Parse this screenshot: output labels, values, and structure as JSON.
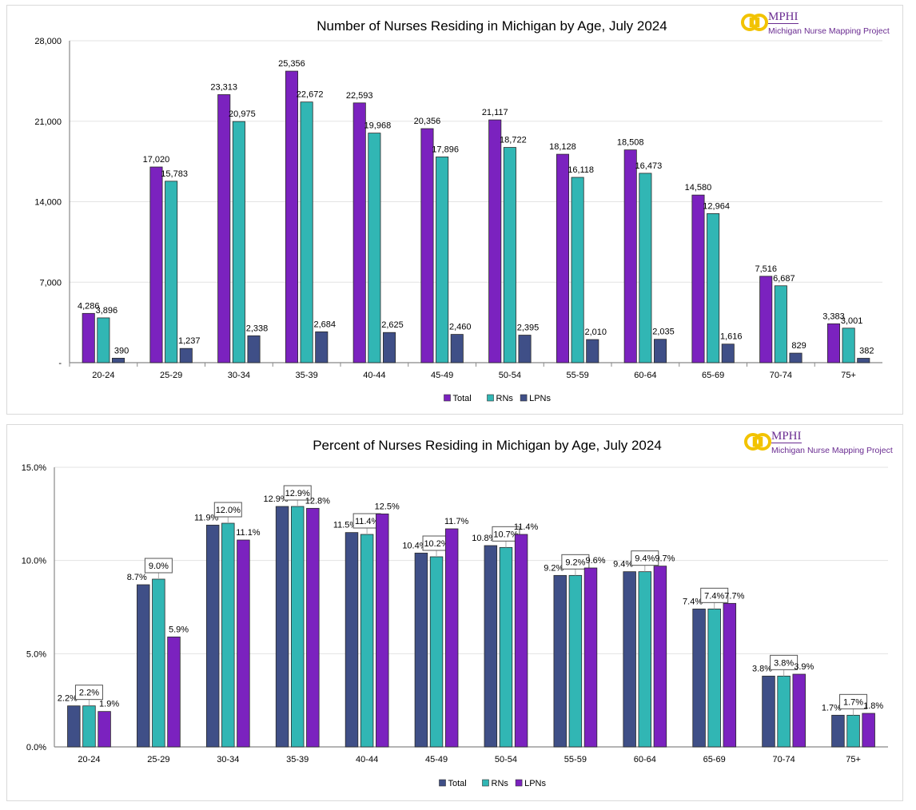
{
  "logo": {
    "name": "MPHI",
    "subtitle": "Michigan Nurse Mapping Project"
  },
  "chart_data": [
    {
      "type": "bar",
      "title": "Number of Nurses Residing in Michigan by Age, July 2024",
      "xlabel": "",
      "ylabel": "",
      "ylim": [
        0,
        28000
      ],
      "yticks": [
        0,
        7000,
        14000,
        21000,
        28000
      ],
      "ytick_labels": [
        "-",
        "7,000",
        "14,000",
        "21,000",
        "28,000"
      ],
      "grid": true,
      "legend_position": "bottom",
      "categories": [
        "20-24",
        "25-29",
        "30-34",
        "35-39",
        "40-44",
        "45-49",
        "50-54",
        "55-59",
        "60-64",
        "65-69",
        "70-74",
        "75+"
      ],
      "series": [
        {
          "name": "Total",
          "color": "#7b22bf",
          "values": [
            4286,
            17020,
            23313,
            25356,
            22593,
            20356,
            21117,
            18128,
            18508,
            14580,
            7516,
            3383
          ],
          "labels": [
            "4,286",
            "17,020",
            "23,313",
            "25,356",
            "22,593",
            "20,356",
            "21,117",
            "18,128",
            "18,508",
            "14,580",
            "7,516",
            "3,383"
          ]
        },
        {
          "name": "RNs",
          "color": "#31b6b4",
          "values": [
            3896,
            15783,
            20975,
            22672,
            19968,
            17896,
            18722,
            16118,
            16473,
            12964,
            6687,
            3001
          ],
          "labels": [
            "3,896",
            "15,783",
            "20,975",
            "22,672",
            "19,968",
            "17,896",
            "18,722",
            "16,118",
            "16,473",
            "12,964",
            "6,687",
            "3,001"
          ]
        },
        {
          "name": "LPNs",
          "color": "#3f4f87",
          "values": [
            390,
            1237,
            2338,
            2684,
            2625,
            2460,
            2395,
            2010,
            2035,
            1616,
            829,
            382
          ],
          "labels": [
            "390",
            "1,237",
            "2,338",
            "2,684",
            "2,625",
            "2,460",
            "2,395",
            "2,010",
            "2,035",
            "1,616",
            "829",
            "382"
          ]
        }
      ]
    },
    {
      "type": "bar",
      "title": "Percent of Nurses Residing in Michigan by Age, July 2024",
      "xlabel": "",
      "ylabel": "",
      "ylim": [
        0,
        15
      ],
      "yticks": [
        0,
        5,
        10,
        15
      ],
      "ytick_labels": [
        "0.0%",
        "5.0%",
        "10.0%",
        "15.0%"
      ],
      "grid": true,
      "legend_position": "bottom",
      "categories": [
        "20-24",
        "25-29",
        "30-34",
        "35-39",
        "40-44",
        "45-49",
        "50-54",
        "55-59",
        "60-64",
        "65-69",
        "70-74",
        "75+"
      ],
      "series": [
        {
          "name": "Total",
          "color": "#3f4f87",
          "values": [
            2.2,
            8.7,
            11.9,
            12.9,
            11.5,
            10.4,
            10.8,
            9.2,
            9.4,
            7.4,
            3.8,
            1.7
          ],
          "labels": [
            "2.2%",
            "8.7%",
            "11.9%",
            "12.9%",
            "11.5%",
            "10.4%",
            "10.8%",
            "9.2%",
            "9.4%",
            "7.4%",
            "3.8%",
            "1.7%"
          ]
        },
        {
          "name": "RNs",
          "color": "#31b6b4",
          "values": [
            2.2,
            9.0,
            12.0,
            12.9,
            11.4,
            10.2,
            10.7,
            9.2,
            9.4,
            7.4,
            3.8,
            1.7
          ],
          "labels": [
            "2.2%",
            "9.0%",
            "12.0%",
            "12.9%",
            "11.4%",
            "10.2%",
            "10.7%",
            "9.2%",
            "9.4%",
            "7.4%",
            "3.8%",
            "1.7%"
          ]
        },
        {
          "name": "LPNs",
          "color": "#7b22bf",
          "values": [
            1.9,
            5.9,
            11.1,
            12.8,
            12.5,
            11.7,
            11.4,
            9.6,
            9.7,
            7.7,
            3.9,
            1.8
          ],
          "labels": [
            "1.9%",
            "5.9%",
            "11.1%",
            "12.8%",
            "12.5%",
            "11.7%",
            "11.4%",
            "9.6%",
            "9.7%",
            "7.7%",
            "3.9%",
            "1.8%"
          ]
        }
      ]
    }
  ]
}
